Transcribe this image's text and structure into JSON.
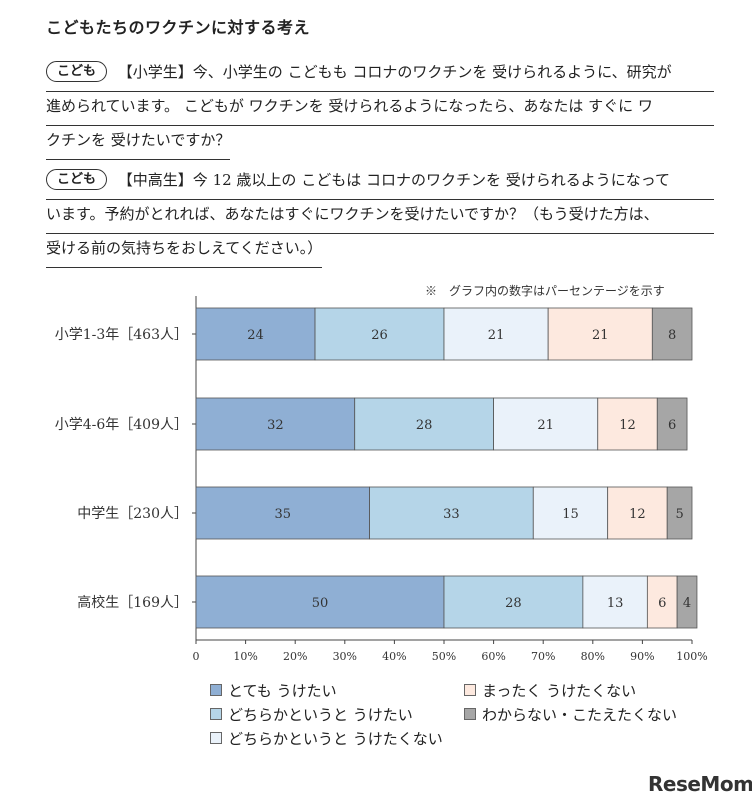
{
  "title": "こどもたちのワクチンに対する考え",
  "questions": [
    {
      "badge": "こども",
      "lines": [
        "【小学生】今、小学生の こどもも コロナのワクチンを 受けられるように、研究が",
        "進められています。 こどもが ワクチンを 受けられるようになったら、あなたは すぐに ワ",
        "クチンを 受けたいですか？"
      ]
    },
    {
      "badge": "こども",
      "lines": [
        "【中高生】今 12 歳以上の こどもは コロナのワクチンを 受けられるようになって",
        "います。予約がとれれば、あなたはすぐにワクチンを受けたいですか？（もう受けた方は、",
        "受ける前の気持ちをおしえてください。）"
      ]
    }
  ],
  "note": "※　グラフ内の数字はパーセンテージを示す",
  "chart_data": {
    "type": "bar",
    "orientation": "horizontal",
    "stacked": true,
    "categories": [
      "小学1-3年［463人］",
      "小学4-6年［409人］",
      "中学生［230人］",
      "高校生［169人］"
    ],
    "series": [
      {
        "name": "とても うけたい",
        "values": [
          24,
          32,
          35,
          50
        ],
        "color": "#8fafd4"
      },
      {
        "name": "どちらかというと うけたい",
        "values": [
          26,
          28,
          33,
          28
        ],
        "color": "#b5d5e8"
      },
      {
        "name": "どちらかというと うけたくない",
        "values": [
          21,
          21,
          15,
          13
        ],
        "color": "#eaf2fa"
      },
      {
        "name": "まったく うけたくない",
        "values": [
          21,
          12,
          12,
          6
        ],
        "color": "#fde9df"
      },
      {
        "name": "わからない・こたえたくない",
        "values": [
          8,
          6,
          5,
          4
        ],
        "color": "#a6a6a6"
      }
    ],
    "xlim": [
      0,
      100
    ],
    "xticks": [
      "0",
      "10%",
      "20%",
      "30%",
      "40%",
      "50%",
      "60%",
      "70%",
      "80%",
      "90%",
      "100%"
    ],
    "grid": false,
    "legend_position": "bottom"
  },
  "logo": "ReseMom"
}
